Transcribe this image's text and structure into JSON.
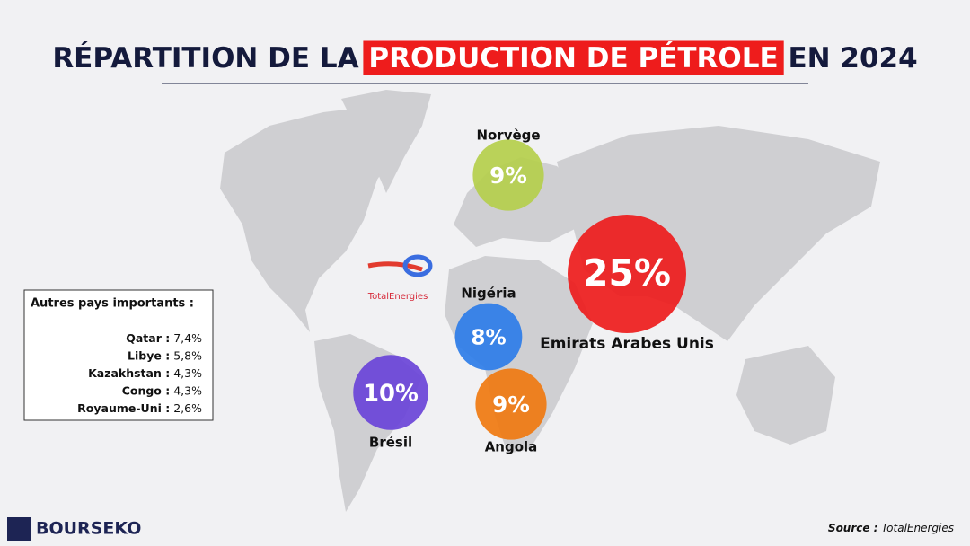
{
  "header": {
    "title_before": "RÉPARTITION DE LA",
    "title_highlight": "PRODUCTION DE PÉTROLE",
    "title_after": "EN 2024"
  },
  "chart_data": {
    "type": "bubble",
    "categories": [
      "Norvège",
      "Emirats Arabes Unis",
      "Nigéria",
      "Brésil",
      "Angola"
    ],
    "values": [
      9,
      25,
      8,
      10,
      9
    ],
    "value_labels": [
      "9%",
      "25%",
      "8%",
      "10%",
      "9%"
    ],
    "colors": [
      "#b5cf4c",
      "#ee1c1c",
      "#2e7de8",
      "#6a44d8",
      "#f07a10"
    ]
  },
  "others": {
    "title": "Autres pays importants :",
    "categories": [
      "Qatar :",
      "Libye :",
      "Kazakhstan :",
      "Congo :",
      "Royaume-Uni :"
    ],
    "values": [
      7.4,
      5.8,
      4.3,
      4.3,
      2.6
    ],
    "value_labels": [
      "7,4%",
      "5,8%",
      "4,3%",
      "4,3%",
      "2,6%"
    ]
  },
  "logo": "TotalEnergies",
  "brand": "BOURSEKO",
  "source": {
    "label": "Source :",
    "text": "TotalEnergies"
  }
}
